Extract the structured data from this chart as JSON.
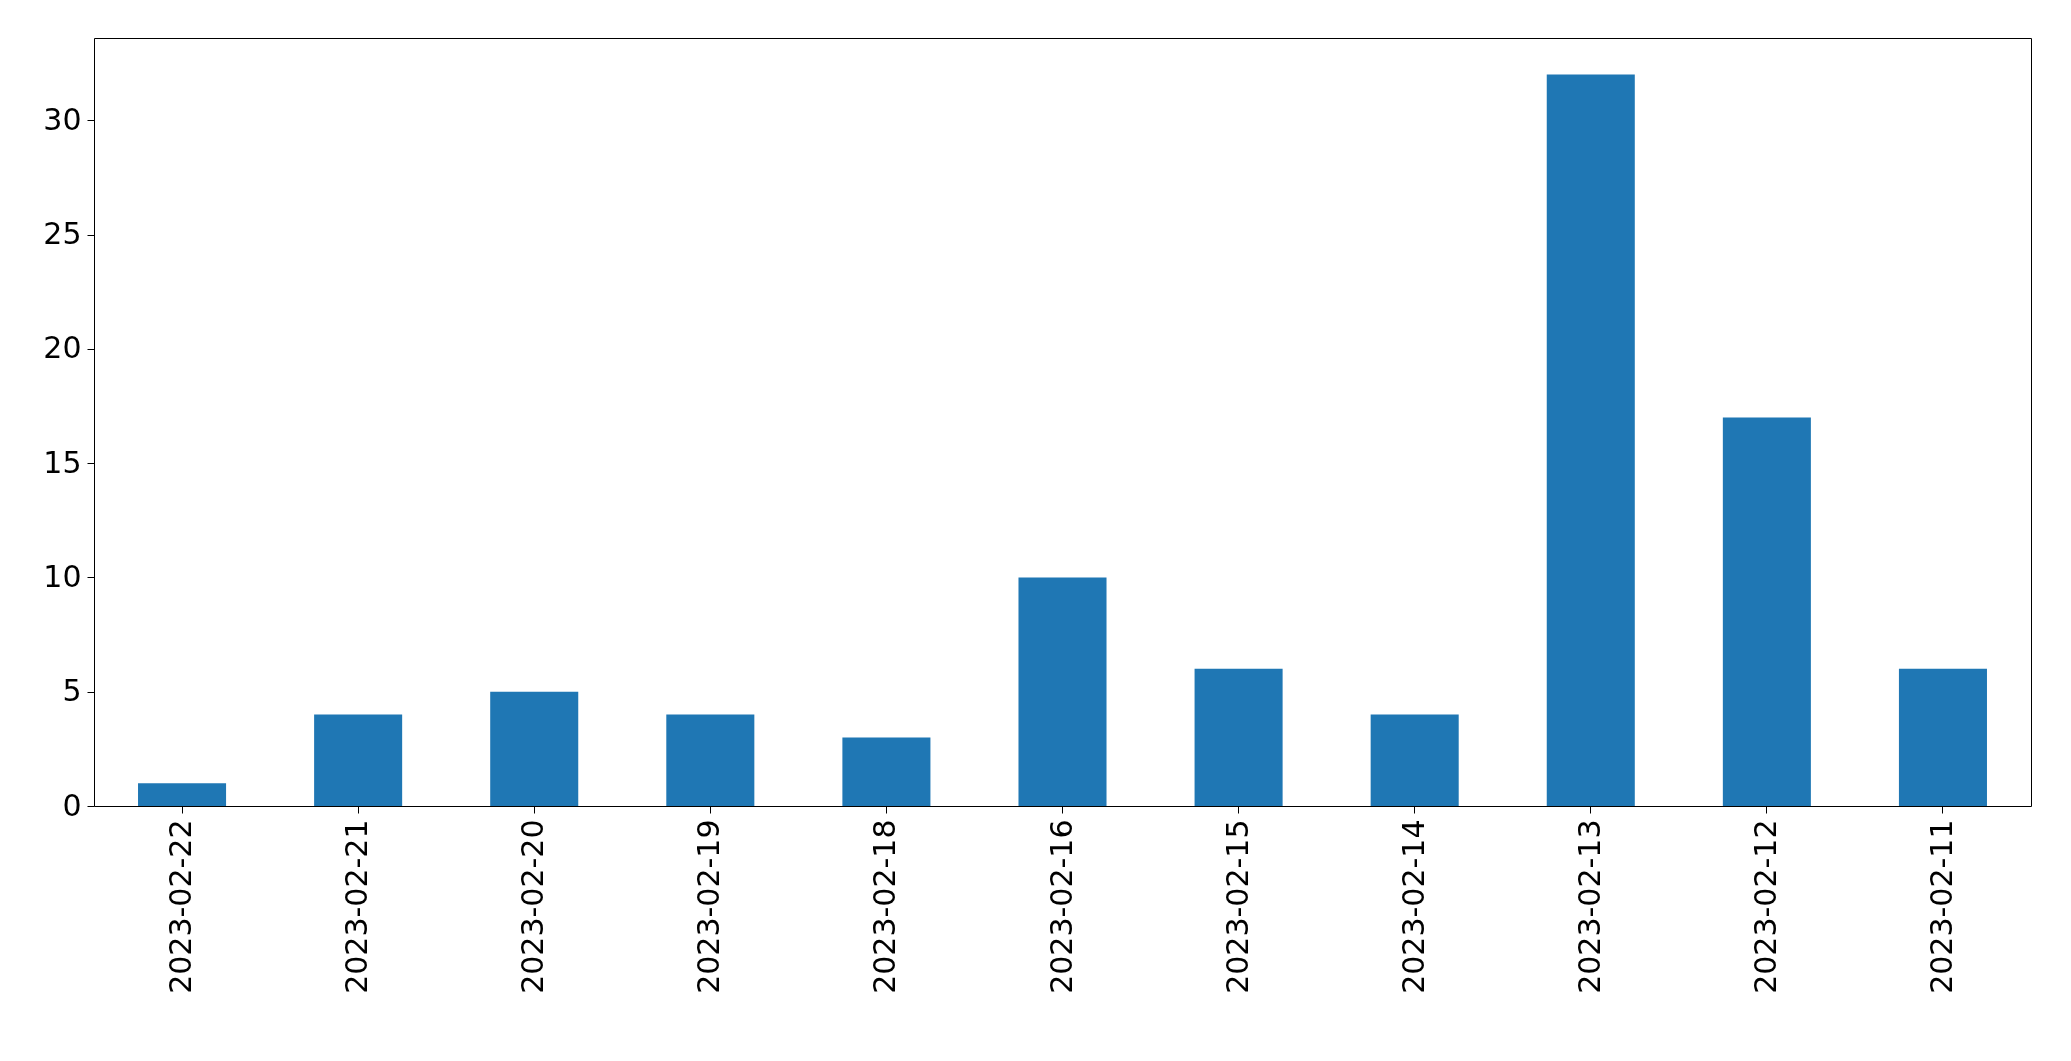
{
  "chart_data": {
    "type": "bar",
    "categories": [
      "2023-02-22",
      "2023-02-21",
      "2023-02-20",
      "2023-02-19",
      "2023-02-18",
      "2023-02-16",
      "2023-02-15",
      "2023-02-14",
      "2023-02-13",
      "2023-02-12",
      "2023-02-11"
    ],
    "values": [
      1,
      4,
      5,
      4,
      3,
      10,
      6,
      4,
      32,
      17,
      6
    ],
    "color": "#1f77b4",
    "ylim": [
      0,
      33.6
    ],
    "yticks": [
      0,
      5,
      10,
      15,
      20,
      25,
      30
    ],
    "grid": false
  }
}
